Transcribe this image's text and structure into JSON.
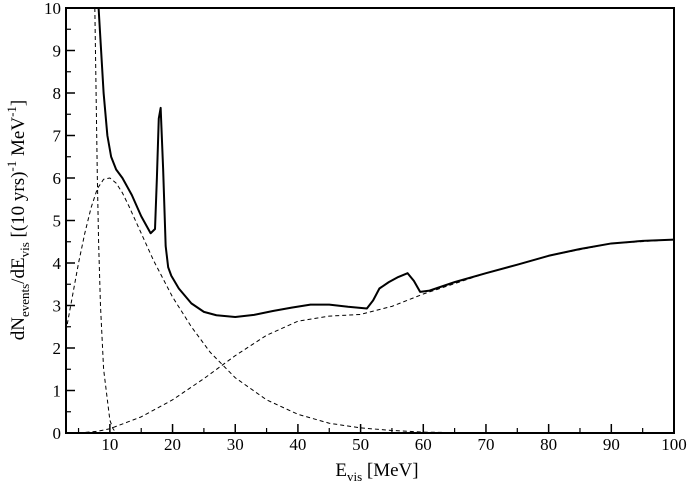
{
  "chart_data": {
    "type": "line",
    "xlabel": "E_vis [MeV]",
    "xlabel_parts": {
      "main": "E",
      "sub": "vis",
      "rest": " [MeV]"
    },
    "ylabel": "dN_events/dE_vis [(10 yrs)^-1 MeV^-1]",
    "ylabel_parts": {
      "a": "dN",
      "a_sub": "events",
      "b": "/dE",
      "b_sub": "vis",
      "c": " [(10 yrs)",
      "c_sup": "-1",
      "d": " MeV",
      "d_sup": "-1",
      "e": "]"
    },
    "xlim": [
      3,
      100
    ],
    "ylim": [
      0,
      10
    ],
    "x_ticks": [
      10,
      20,
      30,
      40,
      50,
      60,
      70,
      80,
      90,
      100
    ],
    "y_ticks": [
      0,
      1,
      2,
      3,
      4,
      5,
      6,
      7,
      8,
      9,
      10
    ],
    "grid": false,
    "legend": "none",
    "series": [
      {
        "style": "solid",
        "x": [
          8.2,
          8.6,
          9.0,
          9.6,
          10.2,
          11.0,
          12.0,
          13.5,
          15.0,
          16.5,
          17.2,
          17.5,
          17.8,
          18.1,
          18.5,
          18.9,
          19.3,
          19.8,
          21.0,
          23.0,
          25.0,
          27.0,
          30.0,
          33.0,
          36.0,
          39.0,
          42.0,
          45.0,
          48.0,
          51.0,
          52.0,
          53.0,
          54.5,
          56.0,
          57.5,
          58.5,
          59.5,
          61.0,
          65.0,
          70.0,
          75.0,
          80.0,
          85.0,
          90.0,
          95.0,
          100.0
        ],
        "y": [
          10.0,
          9.0,
          8.0,
          7.0,
          6.5,
          6.2,
          6.0,
          5.6,
          5.1,
          4.7,
          4.8,
          6.0,
          7.4,
          7.65,
          6.2,
          4.4,
          3.9,
          3.7,
          3.4,
          3.05,
          2.85,
          2.77,
          2.73,
          2.78,
          2.87,
          2.95,
          3.02,
          3.02,
          2.97,
          2.93,
          3.12,
          3.4,
          3.55,
          3.67,
          3.76,
          3.58,
          3.32,
          3.35,
          3.55,
          3.76,
          3.96,
          4.17,
          4.33,
          4.46,
          4.52,
          4.55
        ]
      },
      {
        "style": "dashed",
        "x": [
          7.6,
          7.8,
          8.0,
          8.2,
          8.5,
          9.0,
          10.0,
          10.5,
          11.0
        ],
        "y": [
          10.0,
          8.0,
          6.0,
          4.5,
          3.0,
          1.5,
          0.3,
          0.1,
          0.0
        ]
      },
      {
        "style": "dashed",
        "x": [
          3.0,
          4.0,
          5.0,
          6.0,
          7.0,
          8.0,
          9.0,
          10.0,
          11.0,
          12.0,
          13.0,
          15.0,
          17.0,
          20.0,
          23.0,
          26.0,
          30.0,
          35.0,
          40.0,
          45.0,
          50.0,
          55.0,
          60.0,
          65.0,
          70.0
        ],
        "y": [
          2.4,
          3.2,
          4.0,
          4.7,
          5.3,
          5.75,
          5.97,
          6.0,
          5.88,
          5.65,
          5.35,
          4.7,
          4.05,
          3.2,
          2.5,
          1.9,
          1.3,
          0.78,
          0.44,
          0.23,
          0.12,
          0.06,
          0.02,
          0.01,
          0.0
        ]
      },
      {
        "style": "dashed",
        "x": [
          5.0,
          8.0,
          10.0,
          15.0,
          20.0,
          25.0,
          30.0,
          35.0,
          40.0,
          45.0,
          50.0,
          55.0,
          60.0,
          70.0,
          80.0,
          90.0,
          100.0
        ],
        "y": [
          0.0,
          0.04,
          0.1,
          0.38,
          0.78,
          1.28,
          1.82,
          2.3,
          2.63,
          2.75,
          2.79,
          2.98,
          3.27,
          3.76,
          4.17,
          4.46,
          4.55
        ]
      }
    ]
  }
}
